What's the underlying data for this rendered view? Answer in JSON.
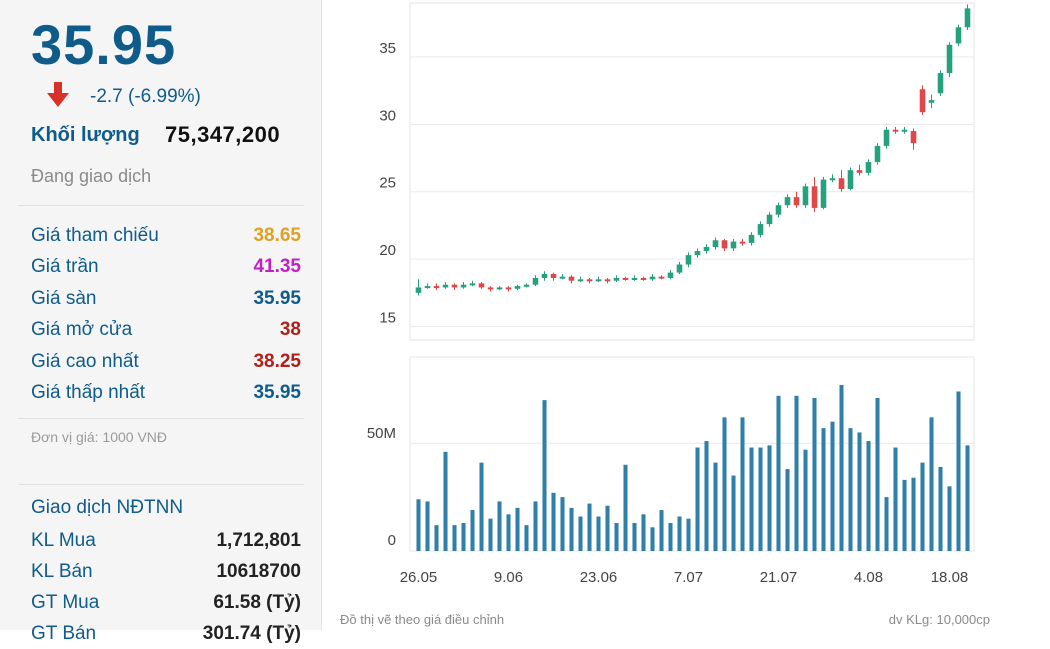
{
  "quote": {
    "price": "35.95",
    "change": "-2.7 (-6.99%)",
    "volume_label": "Khối lượng",
    "volume_value": "75,347,200",
    "status": "Đang giao dịch"
  },
  "price_rows": [
    {
      "label": "Giá tham chiếu",
      "value": "38.65",
      "color": "#e0a020"
    },
    {
      "label": "Giá trần",
      "value": "41.35",
      "color": "#c21fc8"
    },
    {
      "label": "Giá sàn",
      "value": "35.95",
      "color": "#0f5c8a"
    },
    {
      "label": "Giá mở cửa",
      "value": "38",
      "color": "#b0201a"
    },
    {
      "label": "Giá cao nhất",
      "value": "38.25",
      "color": "#b0201a"
    },
    {
      "label": "Giá thấp nhất",
      "value": "35.95",
      "color": "#0f5c8a"
    }
  ],
  "unit_note": "Đơn vị giá: 1000 VNĐ",
  "foreign": {
    "title": "Giao dịch NĐTNN",
    "rows": [
      {
        "label": "KL Mua",
        "value": "1,712,801"
      },
      {
        "label": "KL Bán",
        "value": "10618700"
      },
      {
        "label": "GT Mua",
        "value": "61.58 (Tỷ)"
      },
      {
        "label": "GT Bán",
        "value": "301.74 (Tỷ)"
      }
    ]
  },
  "chart_footer": {
    "left": "Đồ thị vẽ theo giá điều chỉnh",
    "right": "dv KLg: 10,000cp"
  },
  "colors": {
    "up": "#26a17e",
    "down": "#e04848",
    "accent": "#0f5c8a"
  },
  "chart_data": {
    "type": "candlestick",
    "price_axis": {
      "ticks": [
        15,
        20,
        25,
        30,
        35
      ],
      "ylim": [
        14,
        39
      ]
    },
    "volume_axis": {
      "ticks": [
        0,
        50
      ],
      "tick_labels": [
        "0",
        "50M"
      ],
      "ylim": [
        0,
        90
      ]
    },
    "x_tick_labels": [
      "26.05",
      "9.06",
      "23.06",
      "7.07",
      "21.07",
      "4.08",
      "18.08"
    ],
    "x_tick_index": [
      0,
      10,
      20,
      30,
      40,
      50,
      59
    ],
    "candles": [
      [
        17.5,
        17.9,
        18.5,
        17.3
      ],
      [
        17.9,
        18.0,
        18.2,
        17.8
      ],
      [
        18.0,
        17.9,
        18.2,
        17.7
      ],
      [
        17.9,
        18.1,
        18.3,
        17.8
      ],
      [
        18.1,
        17.9,
        18.2,
        17.7
      ],
      [
        17.9,
        18.1,
        18.3,
        17.8
      ],
      [
        18.1,
        18.2,
        18.4,
        18.0
      ],
      [
        18.2,
        17.9,
        18.3,
        17.8
      ],
      [
        17.9,
        17.8,
        18.0,
        17.6
      ],
      [
        17.8,
        17.9,
        18.0,
        17.7
      ],
      [
        17.9,
        17.8,
        18.0,
        17.6
      ],
      [
        17.8,
        18.0,
        18.1,
        17.7
      ],
      [
        18.0,
        18.1,
        18.2,
        17.9
      ],
      [
        18.1,
        18.6,
        18.8,
        18.0
      ],
      [
        18.6,
        18.9,
        19.1,
        18.4
      ],
      [
        18.9,
        18.6,
        19.0,
        18.4
      ],
      [
        18.6,
        18.7,
        18.9,
        18.5
      ],
      [
        18.7,
        18.4,
        18.8,
        18.2
      ],
      [
        18.4,
        18.5,
        18.7,
        18.3
      ],
      [
        18.5,
        18.4,
        18.6,
        18.2
      ],
      [
        18.4,
        18.5,
        18.7,
        18.3
      ],
      [
        18.5,
        18.4,
        18.6,
        18.2
      ],
      [
        18.4,
        18.6,
        18.8,
        18.3
      ],
      [
        18.6,
        18.5,
        18.7,
        18.4
      ],
      [
        18.5,
        18.6,
        18.8,
        18.4
      ],
      [
        18.6,
        18.5,
        18.7,
        18.4
      ],
      [
        18.5,
        18.7,
        18.9,
        18.4
      ],
      [
        18.7,
        18.6,
        18.8,
        18.5
      ],
      [
        18.6,
        19.0,
        19.2,
        18.5
      ],
      [
        19.0,
        19.6,
        19.8,
        18.9
      ],
      [
        19.6,
        20.3,
        20.5,
        19.4
      ],
      [
        20.3,
        20.6,
        20.8,
        20.1
      ],
      [
        20.6,
        20.9,
        21.1,
        20.4
      ],
      [
        20.9,
        21.4,
        21.6,
        20.7
      ],
      [
        21.4,
        20.8,
        21.5,
        20.6
      ],
      [
        20.8,
        21.3,
        21.5,
        20.6
      ],
      [
        21.3,
        21.2,
        21.5,
        21.0
      ],
      [
        21.2,
        21.8,
        22.0,
        21.0
      ],
      [
        21.8,
        22.6,
        22.8,
        21.6
      ],
      [
        22.6,
        23.3,
        23.5,
        22.4
      ],
      [
        23.3,
        24.0,
        24.2,
        23.1
      ],
      [
        24.0,
        24.6,
        24.8,
        23.8
      ],
      [
        24.6,
        24.0,
        25.0,
        23.8
      ],
      [
        24.0,
        25.4,
        25.6,
        23.8
      ],
      [
        25.4,
        23.8,
        26.1,
        23.5
      ],
      [
        23.8,
        25.9,
        26.1,
        23.7
      ],
      [
        25.9,
        26.0,
        26.3,
        25.7
      ],
      [
        26.0,
        25.2,
        26.6,
        25.0
      ],
      [
        25.2,
        26.6,
        26.8,
        25.1
      ],
      [
        26.6,
        26.4,
        27.0,
        26.2
      ],
      [
        26.4,
        27.2,
        27.4,
        26.2
      ],
      [
        27.2,
        28.4,
        28.6,
        27.0
      ],
      [
        28.4,
        29.6,
        29.8,
        28.2
      ],
      [
        29.6,
        29.5,
        29.8,
        29.3
      ],
      [
        29.5,
        29.6,
        29.8,
        29.3
      ],
      [
        29.5,
        28.6,
        29.7,
        28.1
      ],
      [
        32.6,
        30.9,
        32.9,
        30.7
      ],
      [
        31.6,
        31.8,
        32.2,
        31.2
      ],
      [
        32.3,
        33.8,
        34.0,
        32.1
      ],
      [
        33.8,
        35.9,
        36.1,
        33.5
      ],
      [
        36.0,
        37.2,
        37.4,
        35.8
      ],
      [
        37.2,
        38.6,
        38.9,
        37.0
      ]
    ],
    "volumes": [
      24,
      23,
      12,
      46,
      12,
      13,
      19,
      41,
      15,
      23,
      17,
      20,
      12,
      23,
      70,
      27,
      25,
      20,
      16,
      22,
      16,
      21,
      13,
      40,
      13,
      17,
      11,
      19,
      13,
      16,
      15,
      48,
      51,
      41,
      62,
      35,
      62,
      48,
      48,
      49,
      72,
      38,
      72,
      47,
      71,
      57,
      60,
      77,
      57,
      55,
      51,
      71,
      25,
      48,
      33,
      34,
      41,
      62,
      39,
      30,
      74,
      49
    ]
  }
}
